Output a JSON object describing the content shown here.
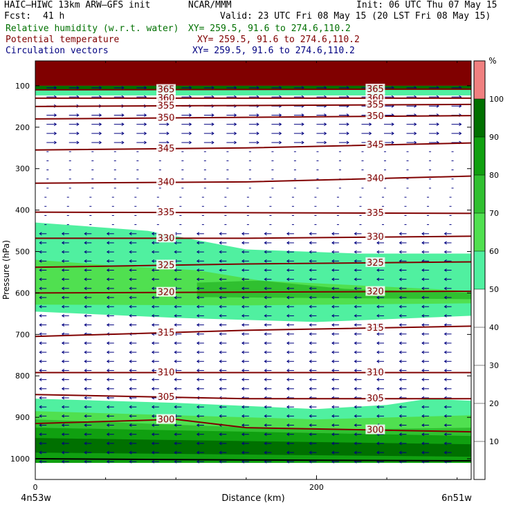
{
  "header": {
    "model": "HAIC–HIWC 13km ARW–GFS init",
    "org": "NCAR/MMM",
    "init": "Init: 06 UTC Thu 07 May 15",
    "fcst_label": "Fcst:",
    "fcst_value": "41 h",
    "valid": "Valid: 23 UTC Fri 08 May 15 (20 LST Fri 08 May 15)",
    "fields": [
      {
        "name": "Relative humidity (w.r.t. water)",
        "xy": "XY= 259.5, 91.6 to 274.6,110.2",
        "color": "#007000"
      },
      {
        "name": "Potential temperature",
        "xy": "XY= 259.5, 91.6 to 274.6,110.2",
        "color": "#800000"
      },
      {
        "name": "Circulation vectors",
        "xy": "XY= 259.5, 91.6 to 274.6,110.2",
        "color": "#000080"
      }
    ]
  },
  "chart_data": {
    "type": "cross-section",
    "title": "",
    "xlabel": "Distance (km)",
    "ylabel": "Pressure (hPa)",
    "xlim": [
      0,
      310
    ],
    "ylim": [
      1050,
      40
    ],
    "x_ticks": [
      0,
      200
    ],
    "x_tick_labels": [
      "0",
      "200"
    ],
    "y_ticks": [
      100,
      200,
      300,
      400,
      500,
      600,
      700,
      800,
      900,
      1000
    ],
    "y_tick_labels": [
      "100",
      "200",
      "300",
      "400",
      "500",
      "600",
      "700",
      "800",
      "900",
      "1000"
    ],
    "x_endpoints": [
      "4n53w",
      "6n51w"
    ],
    "colorbar": {
      "unit": "%",
      "levels": [
        10,
        20,
        30,
        40,
        50,
        60,
        70,
        80,
        90,
        100
      ],
      "colors": [
        "#ffffff",
        "#ffffff",
        "#ffffff",
        "#ffffff",
        "#ffffff",
        "#50f0a0",
        "#50e050",
        "#30c030",
        "#10a010",
        "#007000",
        "#f08080"
      ]
    },
    "theta_contours": [
      {
        "value": 365,
        "label": "365",
        "points": [
          [
            0,
            110
          ],
          [
            310,
            108
          ]
        ]
      },
      {
        "value": 360,
        "label": "360",
        "points": [
          [
            0,
            130
          ],
          [
            310,
            130
          ]
        ]
      },
      {
        "value": 355,
        "label": "355",
        "points": [
          [
            0,
            150
          ],
          [
            310,
            145
          ]
        ]
      },
      {
        "value": 350,
        "label": "350",
        "points": [
          [
            0,
            180
          ],
          [
            310,
            172
          ]
        ]
      },
      {
        "value": 345,
        "label": "345",
        "points": [
          [
            0,
            255
          ],
          [
            150,
            250
          ],
          [
            310,
            238
          ]
        ]
      },
      {
        "value": 340,
        "label": "340",
        "points": [
          [
            0,
            335
          ],
          [
            150,
            332
          ],
          [
            310,
            318
          ]
        ]
      },
      {
        "value": 335,
        "label": "335",
        "points": [
          [
            0,
            405
          ],
          [
            310,
            408
          ]
        ]
      },
      {
        "value": 330,
        "label": "330",
        "points": [
          [
            0,
            468
          ],
          [
            150,
            468
          ],
          [
            310,
            463
          ]
        ]
      },
      {
        "value": 325,
        "label": "325",
        "points": [
          [
            0,
            538
          ],
          [
            150,
            530
          ],
          [
            310,
            525
          ]
        ]
      },
      {
        "value": 320,
        "label": "320",
        "points": [
          [
            0,
            600
          ],
          [
            150,
            598
          ],
          [
            310,
            596
          ]
        ]
      },
      {
        "value": 315,
        "label": "315",
        "points": [
          [
            0,
            705
          ],
          [
            150,
            690
          ],
          [
            310,
            680
          ]
        ]
      },
      {
        "value": 310,
        "label": "310",
        "points": [
          [
            0,
            792
          ],
          [
            310,
            792
          ]
        ]
      },
      {
        "value": 305,
        "label": "305",
        "points": [
          [
            0,
            845
          ],
          [
            150,
            855
          ],
          [
            310,
            855
          ]
        ]
      },
      {
        "value": 300,
        "label": "300",
        "points": [
          [
            0,
            915
          ],
          [
            100,
            905
          ],
          [
            150,
            925
          ],
          [
            310,
            935
          ]
        ]
      }
    ],
    "rh_bands": [
      {
        "level": 50,
        "polygon": [
          [
            0,
            430
          ],
          [
            80,
            450
          ],
          [
            150,
            495
          ],
          [
            230,
            505
          ],
          [
            310,
            505
          ],
          [
            310,
            655
          ],
          [
            200,
            670
          ],
          [
            100,
            660
          ],
          [
            0,
            645
          ]
        ]
      },
      {
        "level": 60,
        "polygon": [
          [
            0,
            520
          ],
          [
            60,
            535
          ],
          [
            115,
            545
          ],
          [
            160,
            570
          ],
          [
            310,
            595
          ],
          [
            310,
            625
          ],
          [
            150,
            630
          ],
          [
            0,
            628
          ]
        ]
      },
      {
        "level": 70,
        "polygon": [
          [
            115,
            575
          ],
          [
            160,
            570
          ],
          [
            220,
            590
          ],
          [
            310,
            600
          ],
          [
            310,
            615
          ],
          [
            115,
            610
          ]
        ]
      },
      {
        "level": 50,
        "polygon": [
          [
            0,
            855
          ],
          [
            100,
            865
          ],
          [
            200,
            880
          ],
          [
            250,
            870
          ],
          [
            280,
            855
          ],
          [
            310,
            860
          ],
          [
            310,
            1010
          ],
          [
            0,
            1010
          ]
        ]
      },
      {
        "level": 60,
        "polygon": [
          [
            0,
            885
          ],
          [
            100,
            895
          ],
          [
            200,
            905
          ],
          [
            310,
            895
          ],
          [
            310,
            1010
          ],
          [
            0,
            1010
          ]
        ]
      },
      {
        "level": 70,
        "polygon": [
          [
            0,
            905
          ],
          [
            100,
            918
          ],
          [
            200,
            930
          ],
          [
            310,
            925
          ],
          [
            310,
            1010
          ],
          [
            0,
            1010
          ]
        ]
      },
      {
        "level": 80,
        "polygon": [
          [
            0,
            925
          ],
          [
            310,
            945
          ],
          [
            310,
            1010
          ],
          [
            0,
            1010
          ]
        ]
      },
      {
        "level": 90,
        "polygon": [
          [
            0,
            950
          ],
          [
            310,
            965
          ],
          [
            310,
            995
          ],
          [
            0,
            985
          ]
        ]
      }
    ],
    "top_band": {
      "level": 100,
      "p_from": 40,
      "p_to": 100
    },
    "vector_field": {
      "description": "wind vectors",
      "upper_dir": "east",
      "lower_dir": "west",
      "switch_p": 350
    },
    "grid": false
  }
}
